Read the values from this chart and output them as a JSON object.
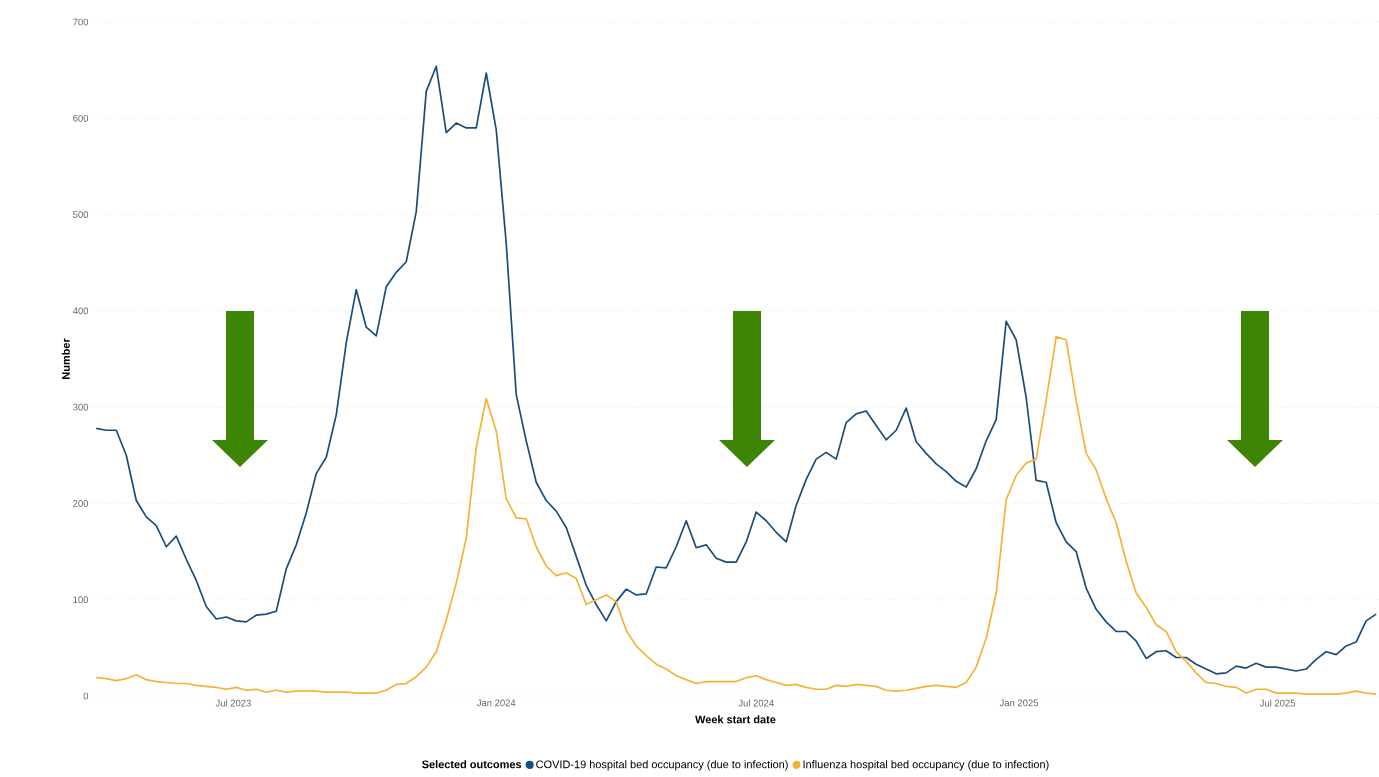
{
  "chart_data": {
    "type": "line",
    "xlabel": "Week start date",
    "ylabel": "Number",
    "legend_title": "Selected outcomes",
    "legend": "bottom",
    "grid": "y",
    "ylim": [
      0,
      700
    ],
    "yticks": [
      0,
      100,
      200,
      300,
      400,
      500,
      600,
      700
    ],
    "xlim": [
      "2023-03-24",
      "2025-09-10"
    ],
    "xticks": [
      {
        "value": "2023-07-01",
        "label": "Jul 2023"
      },
      {
        "value": "2024-01-01",
        "label": "Jan 2024"
      },
      {
        "value": "2024-07-01",
        "label": "Jul 2024"
      },
      {
        "value": "2025-01-01",
        "label": "Jan 2025"
      },
      {
        "value": "2025-07-01",
        "label": "Jul 2025"
      }
    ],
    "x": [
      "2023-03-27",
      "2023-04-03",
      "2023-04-10",
      "2023-04-17",
      "2023-04-24",
      "2023-05-01",
      "2023-05-08",
      "2023-05-15",
      "2023-05-22",
      "2023-05-29",
      "2023-06-05",
      "2023-06-12",
      "2023-06-19",
      "2023-06-26",
      "2023-07-03",
      "2023-07-10",
      "2023-07-17",
      "2023-07-24",
      "2023-07-31",
      "2023-08-07",
      "2023-08-14",
      "2023-08-21",
      "2023-08-28",
      "2023-09-04",
      "2023-09-11",
      "2023-09-18",
      "2023-09-25",
      "2023-10-02",
      "2023-10-09",
      "2023-10-16",
      "2023-10-23",
      "2023-10-30",
      "2023-11-06",
      "2023-11-13",
      "2023-11-20",
      "2023-11-27",
      "2023-12-04",
      "2023-12-11",
      "2023-12-18",
      "2023-12-25",
      "2024-01-01",
      "2024-01-08",
      "2024-01-15",
      "2024-01-22",
      "2024-01-29",
      "2024-02-05",
      "2024-02-12",
      "2024-02-19",
      "2024-02-26",
      "2024-03-04",
      "2024-03-11",
      "2024-03-18",
      "2024-03-25",
      "2024-04-01",
      "2024-04-08",
      "2024-04-15",
      "2024-04-22",
      "2024-04-29",
      "2024-05-06",
      "2024-05-13",
      "2024-05-20",
      "2024-05-27",
      "2024-06-03",
      "2024-06-10",
      "2024-06-17",
      "2024-06-24",
      "2024-07-01",
      "2024-07-08",
      "2024-07-15",
      "2024-07-22",
      "2024-07-29",
      "2024-08-05",
      "2024-08-12",
      "2024-08-19",
      "2024-08-26",
      "2024-09-02",
      "2024-09-09",
      "2024-09-16",
      "2024-09-23",
      "2024-09-30",
      "2024-10-07",
      "2024-10-14",
      "2024-10-21",
      "2024-10-28",
      "2024-11-04",
      "2024-11-11",
      "2024-11-18",
      "2024-11-25",
      "2024-12-02",
      "2024-12-09",
      "2024-12-16",
      "2024-12-23",
      "2024-12-30",
      "2025-01-06",
      "2025-01-13",
      "2025-01-20",
      "2025-01-27",
      "2025-02-03",
      "2025-02-10",
      "2025-02-17",
      "2025-02-24",
      "2025-03-03",
      "2025-03-10",
      "2025-03-17",
      "2025-03-24",
      "2025-03-31",
      "2025-04-07",
      "2025-04-14",
      "2025-04-21",
      "2025-04-28",
      "2025-05-05",
      "2025-05-12",
      "2025-05-19",
      "2025-05-26",
      "2025-06-02",
      "2025-06-09",
      "2025-06-16",
      "2025-06-23",
      "2025-06-30",
      "2025-07-07",
      "2025-07-14",
      "2025-07-21",
      "2025-07-28",
      "2025-08-04",
      "2025-08-11",
      "2025-08-18",
      "2025-08-25",
      "2025-09-01",
      "2025-09-08"
    ],
    "series": [
      {
        "name": "COVID-19 hospital bed occupancy (due to infection)",
        "color": "#1a4e7a",
        "values": [
          278,
          276,
          276,
          250,
          203,
          186,
          177,
          155,
          166,
          142,
          120,
          93,
          80,
          82,
          78,
          77,
          84,
          85,
          88,
          132,
          157,
          190,
          231,
          248,
          292,
          367,
          422,
          383,
          374,
          425,
          440,
          451,
          503,
          628,
          654,
          585,
          595,
          590,
          590,
          647,
          588,
          470,
          313,
          265,
          222,
          203,
          192,
          175,
          145,
          115,
          95,
          78,
          98,
          111,
          105,
          106,
          134,
          133,
          155,
          182,
          154,
          157,
          143,
          139,
          139,
          160,
          191,
          182,
          170,
          160,
          198,
          225,
          246,
          253,
          246,
          284,
          293,
          296,
          281,
          266,
          276,
          299,
          264,
          252,
          241,
          233,
          223,
          217,
          236,
          265,
          287,
          389,
          370,
          310,
          224,
          222,
          180,
          160,
          150,
          112,
          90,
          77,
          67,
          67,
          57,
          39,
          46,
          47,
          40,
          40,
          33,
          28,
          23,
          24,
          31,
          29,
          34,
          30,
          30,
          28,
          26,
          28,
          38,
          46,
          43,
          52,
          56,
          78,
          85
        ]
      },
      {
        "name": "Influenza hospital bed occupancy (due to infection)",
        "color": "#f5b335",
        "values": [
          19,
          18,
          16,
          18,
          22,
          17,
          15,
          14,
          13,
          13,
          11,
          10,
          9,
          7,
          9,
          6,
          7,
          4,
          6,
          4,
          5,
          5,
          5,
          4,
          4,
          4,
          3,
          3,
          3,
          6,
          12,
          13,
          20,
          30,
          46,
          79,
          117,
          164,
          258,
          309,
          275,
          205,
          185,
          184,
          155,
          135,
          125,
          128,
          122,
          95,
          100,
          105,
          98,
          68,
          52,
          42,
          33,
          28,
          21,
          17,
          13,
          15,
          15,
          15,
          15,
          19,
          21,
          17,
          14,
          11,
          12,
          9,
          7,
          7,
          11,
          10,
          12,
          11,
          10,
          6,
          5,
          6,
          8,
          10,
          11,
          10,
          9,
          14,
          30,
          60,
          107,
          204,
          229,
          242,
          246,
          307,
          373,
          370,
          307,
          252,
          235,
          205,
          180,
          140,
          107,
          92,
          74,
          67,
          46,
          36,
          24,
          14,
          13,
          10,
          9,
          3,
          7,
          7,
          3,
          3,
          3,
          2,
          2,
          2,
          2,
          3,
          5,
          3,
          2
        ]
      }
    ]
  }
}
